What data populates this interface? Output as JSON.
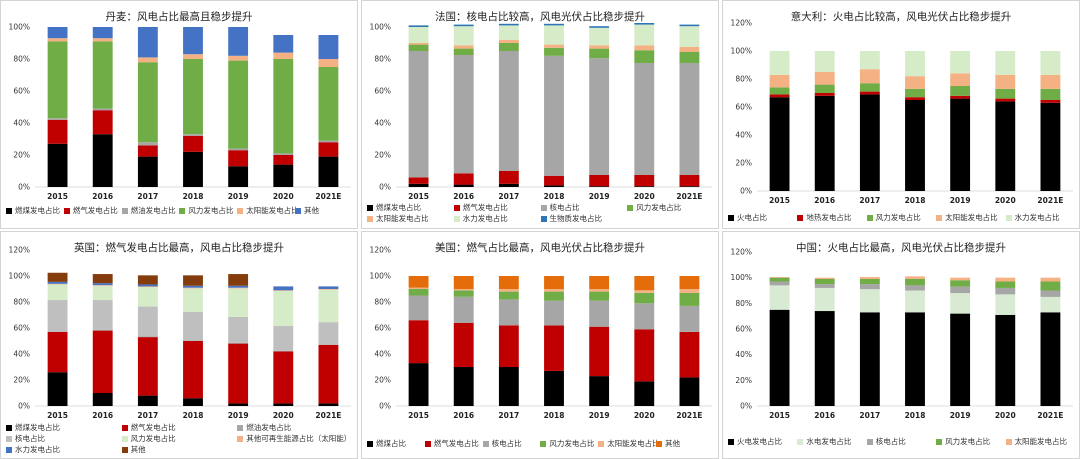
{
  "colors": {
    "coal": "#000000",
    "gas": "#c00000",
    "oil": "#a6a6a6",
    "wind": "#70ad47",
    "solar": "#f4b183",
    "other": "#4472c4",
    "nuclear": "#a6a6a6",
    "hydro": "#d6ecc9",
    "bio": "#2e75b6",
    "renew": "#f8cbad",
    "other_orange": "#e46c0a",
    "thermal": "#000000",
    "geo": "#c00000",
    "hydro_cn": "#d9ead3"
  },
  "chart_data": [
    {
      "id": "denmark",
      "type": "bar",
      "stacked": true,
      "title": "丹麦：风电占比最高且稳步提升",
      "categories": [
        "2015",
        "2016",
        "2017",
        "2018",
        "2019",
        "2020",
        "2021E"
      ],
      "ylim": [
        0,
        1
      ],
      "yticks": [
        "0%",
        "20%",
        "40%",
        "60%",
        "80%",
        "100%"
      ],
      "legend_columns": 6,
      "series": [
        {
          "name": "燃煤发电占比",
          "color": "#000000",
          "values": [
            0.27,
            0.33,
            0.19,
            0.22,
            0.13,
            0.14,
            0.19
          ]
        },
        {
          "name": "燃气发电占比",
          "color": "#c00000",
          "values": [
            0.15,
            0.15,
            0.07,
            0.1,
            0.1,
            0.06,
            0.09
          ]
        },
        {
          "name": "燃油发电占比",
          "color": "#a6a6a6",
          "values": [
            0.01,
            0.01,
            0.02,
            0.01,
            0.01,
            0.01,
            0.01
          ]
        },
        {
          "name": "风力发电占比",
          "color": "#70ad47",
          "values": [
            0.48,
            0.42,
            0.5,
            0.47,
            0.55,
            0.59,
            0.46
          ]
        },
        {
          "name": "太阳能发电占比",
          "color": "#f4b183",
          "values": [
            0.02,
            0.02,
            0.03,
            0.03,
            0.03,
            0.04,
            0.05
          ]
        },
        {
          "name": "其他",
          "color": "#4472c4",
          "values": [
            0.07,
            0.07,
            0.19,
            0.17,
            0.18,
            0.11,
            0.15
          ]
        }
      ]
    },
    {
      "id": "france",
      "type": "bar",
      "stacked": true,
      "title": "法国：核电占比较高，风电光伏占比稳步提升",
      "categories": [
        "2015",
        "2016",
        "2017",
        "2018",
        "2019",
        "2020",
        "2021E"
      ],
      "ylim": [
        0,
        1
      ],
      "yticks": [
        "0%",
        "20%",
        "40%",
        "60%",
        "80%",
        "100%"
      ],
      "legend_columns": 4,
      "series": [
        {
          "name": "燃煤发电占比",
          "color": "#000000",
          "values": [
            0.02,
            0.015,
            0.02,
            0.01,
            0.005,
            0.005,
            0.005
          ]
        },
        {
          "name": "燃气发电占比",
          "color": "#c00000",
          "values": [
            0.04,
            0.07,
            0.08,
            0.06,
            0.07,
            0.07,
            0.07
          ]
        },
        {
          "name": "核电占比",
          "color": "#a6a6a6",
          "values": [
            0.79,
            0.74,
            0.75,
            0.75,
            0.73,
            0.7,
            0.7
          ]
        },
        {
          "name": "风力发电占比",
          "color": "#70ad47",
          "values": [
            0.04,
            0.04,
            0.05,
            0.05,
            0.06,
            0.08,
            0.07
          ]
        },
        {
          "name": "太阳能发电占比",
          "color": "#f4b183",
          "values": [
            0.01,
            0.02,
            0.02,
            0.02,
            0.02,
            0.03,
            0.03
          ]
        },
        {
          "name": "水力发电占比",
          "color": "#d6ecc9",
          "values": [
            0.1,
            0.12,
            0.09,
            0.12,
            0.11,
            0.13,
            0.13
          ]
        },
        {
          "name": "生物质发电占比",
          "color": "#2e75b6",
          "values": [
            0.01,
            0.01,
            0.01,
            0.01,
            0.01,
            0.01,
            0.01
          ]
        }
      ]
    },
    {
      "id": "italy",
      "type": "bar",
      "stacked": true,
      "title": "意大利：火电占比较高，风电光伏占比稳步提升",
      "categories": [
        "2015",
        "2016",
        "2017",
        "2018",
        "2019",
        "2020",
        "2021E"
      ],
      "ylim": [
        0,
        1.2
      ],
      "yticks": [
        "0%",
        "20%",
        "40%",
        "60%",
        "80%",
        "100%",
        "120%"
      ],
      "legend_columns": 5,
      "series": [
        {
          "name": "火电占比",
          "color": "#000000",
          "values": [
            0.67,
            0.68,
            0.69,
            0.65,
            0.66,
            0.64,
            0.63
          ]
        },
        {
          "name": "地热发电占比",
          "color": "#c00000",
          "values": [
            0.02,
            0.02,
            0.02,
            0.02,
            0.02,
            0.02,
            0.02
          ]
        },
        {
          "name": "风力发电占比",
          "color": "#70ad47",
          "values": [
            0.05,
            0.06,
            0.06,
            0.06,
            0.07,
            0.07,
            0.08
          ]
        },
        {
          "name": "太阳能发电占比",
          "color": "#f4b183",
          "values": [
            0.09,
            0.09,
            0.1,
            0.09,
            0.09,
            0.1,
            0.1
          ]
        },
        {
          "name": "水力发电占比",
          "color": "#d6ecc9",
          "values": [
            0.17,
            0.15,
            0.13,
            0.18,
            0.16,
            0.17,
            0.17
          ]
        }
      ]
    },
    {
      "id": "uk",
      "type": "bar",
      "stacked": true,
      "title": "英国：燃气发电占比最高，风电占比稳步提升",
      "categories": [
        "2015",
        "2016",
        "2017",
        "2018",
        "2019",
        "2020",
        "2021E"
      ],
      "ylim": [
        0,
        1.2
      ],
      "yticks": [
        "0%",
        "20%",
        "40%",
        "60%",
        "80%",
        "100%",
        "120%"
      ],
      "legend_columns": 3,
      "series": [
        {
          "name": "燃煤发电占比",
          "color": "#000000",
          "values": [
            0.26,
            0.1,
            0.08,
            0.06,
            0.02,
            0.02,
            0.02
          ]
        },
        {
          "name": "燃气发电占比",
          "color": "#c00000",
          "values": [
            0.31,
            0.48,
            0.45,
            0.44,
            0.46,
            0.4,
            0.45
          ]
        },
        {
          "name": "燃油发电占比",
          "color": "#a6a6a6",
          "values": [
            0.005,
            0.005,
            0.005,
            0.005,
            0.005,
            0.005,
            0.005
          ]
        },
        {
          "name": "核电占比",
          "color": "#bfbfbf",
          "values": [
            0.24,
            0.23,
            0.23,
            0.22,
            0.2,
            0.19,
            0.17
          ]
        },
        {
          "name": "风力发电占比",
          "color": "#d6ecc9",
          "values": [
            0.12,
            0.11,
            0.15,
            0.18,
            0.22,
            0.27,
            0.25
          ]
        },
        {
          "name": "其他可再生能源占比（太阳能）",
          "color": "#f4b183",
          "values": [
            0.005,
            0.005,
            0.005,
            0.005,
            0.005,
            0.005,
            0.005
          ]
        },
        {
          "name": "水力发电占比",
          "color": "#4472c4",
          "values": [
            0.015,
            0.015,
            0.015,
            0.015,
            0.015,
            0.03,
            0.02
          ]
        },
        {
          "name": "其他",
          "color": "#843c0c",
          "values": [
            0.07,
            0.07,
            0.07,
            0.08,
            0.09,
            0.0,
            0.0
          ]
        }
      ]
    },
    {
      "id": "usa",
      "type": "bar",
      "stacked": true,
      "title": "美国：燃气占比最高，风电光伏占比稳步提升",
      "categories": [
        "2015",
        "2016",
        "2017",
        "2018",
        "2019",
        "2020",
        "2021E"
      ],
      "ylim": [
        0,
        1.2
      ],
      "yticks": [
        "0%",
        "20%",
        "40%",
        "60%",
        "80%",
        "100%",
        "120%"
      ],
      "legend_columns": 6,
      "series": [
        {
          "name": "燃煤占比",
          "color": "#000000",
          "values": [
            0.33,
            0.3,
            0.3,
            0.27,
            0.23,
            0.19,
            0.22
          ]
        },
        {
          "name": "燃气发电占比",
          "color": "#c00000",
          "values": [
            0.33,
            0.34,
            0.32,
            0.35,
            0.38,
            0.4,
            0.35
          ]
        },
        {
          "name": "核电占比",
          "color": "#a6a6a6",
          "values": [
            0.19,
            0.2,
            0.2,
            0.19,
            0.2,
            0.2,
            0.2
          ]
        },
        {
          "name": "风力发电占比",
          "color": "#70ad47",
          "values": [
            0.05,
            0.05,
            0.06,
            0.07,
            0.07,
            0.08,
            0.1
          ]
        },
        {
          "name": "太阳能发电占比",
          "color": "#f4b183",
          "values": [
            0.01,
            0.01,
            0.02,
            0.02,
            0.02,
            0.02,
            0.03
          ]
        },
        {
          "name": "其他",
          "color": "#e46c0a",
          "values": [
            0.09,
            0.1,
            0.1,
            0.1,
            0.1,
            0.11,
            0.1
          ]
        }
      ]
    },
    {
      "id": "china",
      "type": "bar",
      "stacked": true,
      "title": "中国：火电占比最高，风电光伏占比稳步提升",
      "categories": [
        "2015",
        "2016",
        "2017",
        "2018",
        "2019",
        "2020",
        "2021E"
      ],
      "ylim": [
        0,
        1.2
      ],
      "yticks": [
        "0%",
        "20%",
        "40%",
        "60%",
        "80%",
        "100%",
        "120%"
      ],
      "legend_columns": 5,
      "series": [
        {
          "name": "火电发电占比",
          "color": "#000000",
          "values": [
            0.75,
            0.74,
            0.73,
            0.73,
            0.72,
            0.71,
            0.73
          ]
        },
        {
          "name": "水电发电占比",
          "color": "#d9ead3",
          "values": [
            0.19,
            0.18,
            0.18,
            0.17,
            0.16,
            0.16,
            0.12
          ]
        },
        {
          "name": "核电占比",
          "color": "#a6a6a6",
          "values": [
            0.03,
            0.03,
            0.04,
            0.04,
            0.05,
            0.05,
            0.05
          ]
        },
        {
          "name": "风力发电占比",
          "color": "#70ad47",
          "values": [
            0.03,
            0.04,
            0.04,
            0.05,
            0.05,
            0.05,
            0.07
          ]
        },
        {
          "name": "太阳能发电占比",
          "color": "#f4b183",
          "values": [
            0.005,
            0.01,
            0.015,
            0.02,
            0.02,
            0.03,
            0.03
          ]
        }
      ]
    }
  ]
}
